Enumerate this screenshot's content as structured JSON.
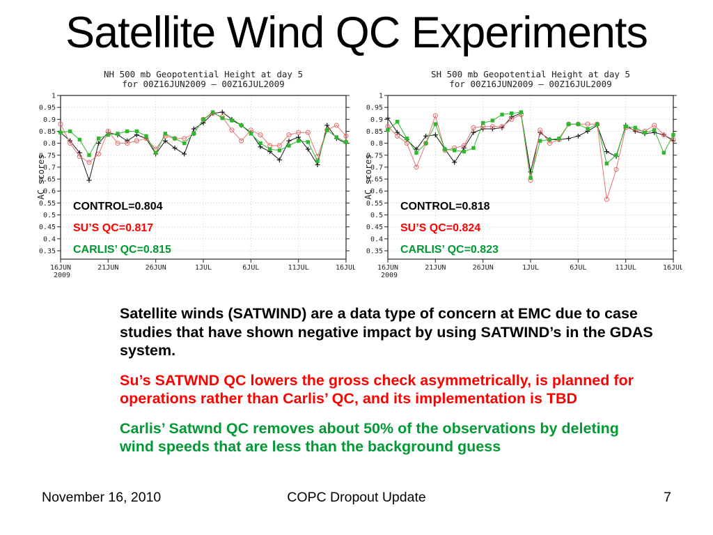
{
  "slide": {
    "title": "Satellite Wind QC Experiments"
  },
  "body": {
    "paragraphs": [
      {
        "text": "Satellite winds (SATWIND) are a data type of concern at EMC due to case studies that have shown negative impact by using SATWIND’s in the GDAS system.",
        "color": "#000000"
      },
      {
        "text": "Su’s SATWND QC lowers the gross check asymmetrically, is planned for operations rather than Carlis’ QC, and its implementation is TBD",
        "color": "#ff0000"
      },
      {
        "text": "Carlis’ Satwnd QC removes about 50% of the observations by deleting wind speeds that are less than the background guess",
        "color": "#009933"
      }
    ]
  },
  "footer": {
    "date": "November 16, 2010",
    "center": "COPC Dropout Update",
    "page": "7"
  },
  "colors": {
    "text_black": "#000000",
    "text_red": "#ff0000",
    "text_green": "#009933",
    "line_black": "#1a1a1a",
    "line_red": "#e87272",
    "line_green": "#2eb82e",
    "grid": "#c8c8c8"
  },
  "chart_data": [
    {
      "type": "line",
      "title": "NH 500 mb Geopotential Height at day 5",
      "subtitle": "for 00Z16JUN2009 – 00Z16JUL2009",
      "ylabel": "AC scores",
      "ylim": [
        0.315,
        1.0
      ],
      "y_ticks": [
        1,
        0.95,
        0.9,
        0.85,
        0.8,
        0.75,
        0.7,
        0.65,
        0.6,
        0.55,
        0.5,
        0.45,
        0.4,
        0.35
      ],
      "x_tick_days": [
        0,
        5,
        10,
        15,
        20,
        25,
        30
      ],
      "x_tick_labels": [
        "16JUN",
        "21JUN",
        "26JUN",
        "1JUL",
        "6JUL",
        "11JUL",
        "16JUL"
      ],
      "x_sublabel": "2009",
      "grid": true,
      "series": [
        {
          "name": "CONTROL",
          "color": "#1a1a1a",
          "marker": "plus",
          "values": [
            0.845,
            0.81,
            0.76,
            0.645,
            0.8,
            0.845,
            0.835,
            0.81,
            0.835,
            0.82,
            0.755,
            0.81,
            0.78,
            0.755,
            0.86,
            0.885,
            0.925,
            0.93,
            0.9,
            0.875,
            0.845,
            0.785,
            0.765,
            0.73,
            0.81,
            0.825,
            0.775,
            0.71,
            0.875,
            0.82,
            0.8
          ]
        },
        {
          "name": "SU'S QC",
          "color": "#e87272",
          "marker": "circle",
          "values": [
            0.88,
            0.8,
            0.745,
            0.72,
            0.755,
            0.85,
            0.8,
            0.8,
            0.81,
            0.82,
            0.775,
            0.83,
            0.82,
            0.82,
            0.84,
            0.9,
            0.925,
            0.91,
            0.855,
            0.81,
            0.855,
            0.835,
            0.79,
            0.79,
            0.835,
            0.845,
            0.845,
            0.745,
            0.855,
            0.875,
            0.83
          ]
        },
        {
          "name": "CARLIS' QC",
          "color": "#2eb82e",
          "marker": "square",
          "values": [
            0.845,
            0.85,
            0.815,
            0.75,
            0.82,
            0.835,
            0.84,
            0.85,
            0.85,
            0.83,
            0.76,
            0.84,
            0.82,
            0.8,
            0.84,
            0.9,
            0.93,
            0.905,
            0.895,
            0.875,
            0.84,
            0.8,
            0.775,
            0.77,
            0.79,
            0.81,
            0.805,
            0.725,
            0.855,
            0.825,
            0.805
          ]
        }
      ],
      "annotation": [
        {
          "text": "CONTROL=0.804",
          "color": "#000000"
        },
        {
          "text": "SU’S QC=0.817",
          "color": "#ff0000"
        },
        {
          "text": "CARLIS’ QC=0.815",
          "color": "#009933"
        }
      ]
    },
    {
      "type": "line",
      "title": "SH 500 mb Geopotential Height at day 5",
      "subtitle": "for 00Z16JUN2009 – 00Z16JUL2009",
      "ylabel": "AC scores",
      "ylim": [
        0.315,
        1.0
      ],
      "y_ticks": [
        1,
        0.95,
        0.9,
        0.85,
        0.8,
        0.75,
        0.7,
        0.65,
        0.6,
        0.55,
        0.5,
        0.45,
        0.4,
        0.35
      ],
      "x_tick_days": [
        0,
        5,
        10,
        15,
        20,
        25,
        30
      ],
      "x_tick_labels": [
        "16JUN",
        "21JUN",
        "26JUN",
        "1JUL",
        "6JUL",
        "11JUL",
        "16JUL"
      ],
      "x_sublabel": "2009",
      "grid": true,
      "series": [
        {
          "name": "CONTROL",
          "color": "#1a1a1a",
          "marker": "plus",
          "values": [
            0.905,
            0.845,
            0.815,
            0.775,
            0.83,
            0.835,
            0.775,
            0.72,
            0.78,
            0.845,
            0.86,
            0.86,
            0.865,
            0.91,
            0.925,
            0.68,
            0.845,
            0.815,
            0.815,
            0.82,
            0.83,
            0.85,
            0.875,
            0.765,
            0.745,
            0.875,
            0.85,
            0.84,
            0.845,
            0.835,
            0.81
          ]
        },
        {
          "name": "SU'S QC",
          "color": "#e87272",
          "marker": "circle",
          "values": [
            0.87,
            0.83,
            0.8,
            0.7,
            0.8,
            0.915,
            0.77,
            0.78,
            0.79,
            0.865,
            0.87,
            0.87,
            0.87,
            0.9,
            0.92,
            0.645,
            0.855,
            0.8,
            0.815,
            0.88,
            0.88,
            0.88,
            0.88,
            0.565,
            0.69,
            0.865,
            0.855,
            0.85,
            0.875,
            0.835,
            0.815
          ]
        },
        {
          "name": "CARLIS' QC",
          "color": "#2eb82e",
          "marker": "square",
          "values": [
            0.855,
            0.89,
            0.82,
            0.76,
            0.8,
            0.88,
            0.775,
            0.77,
            0.765,
            0.78,
            0.885,
            0.895,
            0.92,
            0.925,
            0.93,
            0.655,
            0.81,
            0.815,
            0.82,
            0.88,
            0.88,
            0.86,
            0.88,
            0.715,
            0.75,
            0.87,
            0.865,
            0.845,
            0.855,
            0.76,
            0.835
          ]
        }
      ],
      "annotation": [
        {
          "text": "CONTROL=0.818",
          "color": "#000000"
        },
        {
          "text": "SU’S QC=0.824",
          "color": "#ff0000"
        },
        {
          "text": "CARLIS’ QC=0.823",
          "color": "#009933"
        }
      ]
    }
  ]
}
